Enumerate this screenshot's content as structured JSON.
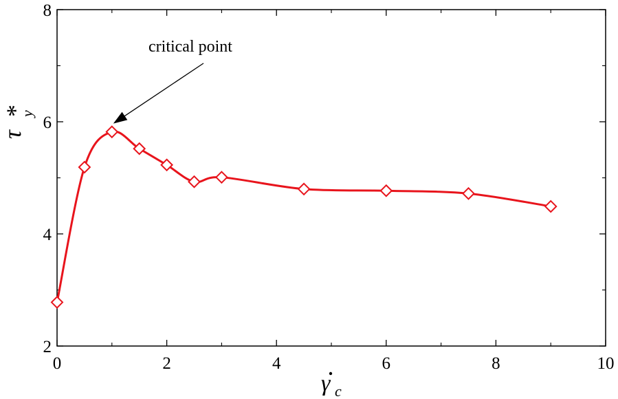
{
  "chart_data": {
    "type": "line",
    "x": [
      0,
      0.5,
      1,
      1.5,
      2,
      2.5,
      3,
      4.5,
      6,
      7.5,
      9
    ],
    "series": [
      {
        "values": [
          2.78,
          5.19,
          5.82,
          5.52,
          5.23,
          4.93,
          5.01,
          4.8,
          4.77,
          4.72,
          4.49
        ],
        "color": "#e8141c",
        "marker": "diamond-open"
      }
    ],
    "xlim": [
      0,
      10
    ],
    "ylim": [
      2,
      8
    ],
    "xticks": [
      "0",
      "2",
      "4",
      "6",
      "8",
      "10"
    ],
    "yticks": [
      "2",
      "4",
      "6",
      "8"
    ],
    "xlabel": {
      "symbol": "γ",
      "subscript": "c",
      "accent": "dot"
    },
    "ylabel": {
      "symbol": "τ",
      "subscript": "y",
      "superscript": "*"
    },
    "annotation": {
      "text": "critical point",
      "target": [
        1,
        5.82
      ]
    },
    "grid": false,
    "legend": "none"
  }
}
